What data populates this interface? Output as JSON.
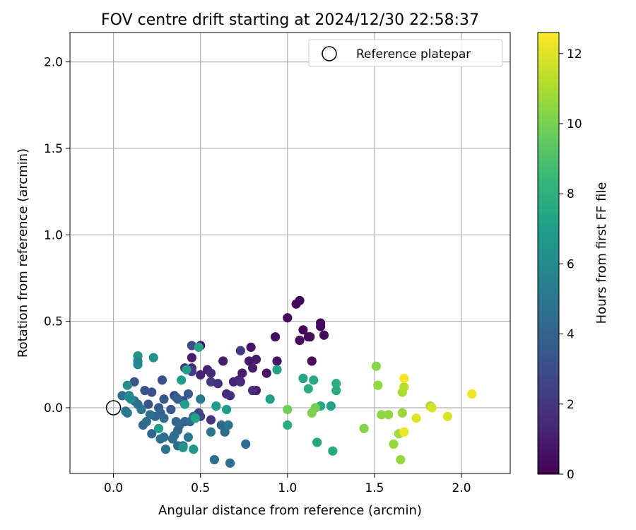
{
  "chart_data": {
    "type": "scatter",
    "title": "FOV centre drift starting at 2024/12/30 22:58:37",
    "xlabel": "Angular distance from reference (arcmin)",
    "ylabel": "Rotation from reference (arcmin)",
    "xlim": [
      -0.25,
      2.28
    ],
    "ylim": [
      -0.38,
      2.17
    ],
    "xticks": [
      0.0,
      0.5,
      1.0,
      1.5,
      2.0
    ],
    "yticks": [
      0.0,
      0.5,
      1.0,
      1.5,
      2.0
    ],
    "xtick_labels": [
      "0.0",
      "0.5",
      "1.0",
      "1.5",
      "2.0"
    ],
    "ytick_labels": [
      "0.0",
      "0.5",
      "1.0",
      "1.5",
      "2.0"
    ],
    "grid": true,
    "legend": {
      "placement": "top-right",
      "entries": [
        "Reference platepar"
      ]
    },
    "reference_point": {
      "x": 0.0,
      "y": 0.0
    },
    "colorbar": {
      "label": "Hours from first FF file",
      "colormap": "viridis",
      "range": [
        0,
        12.6
      ],
      "ticks": [
        0,
        2,
        4,
        6,
        8,
        10,
        12
      ],
      "tick_labels": [
        "0",
        "2",
        "4",
        "6",
        "8",
        "10",
        "12"
      ]
    },
    "colormap_stops": [
      "#440154",
      "#482878",
      "#3e4989",
      "#31688e",
      "#26828e",
      "#1f9e89",
      "#35b779",
      "#6ece58",
      "#b5de2b",
      "#fde725"
    ],
    "points": [
      {
        "x": 1.07,
        "y": 0.62,
        "t": 0.1
      },
      {
        "x": 1.05,
        "y": 0.6,
        "t": 0.2
      },
      {
        "x": 1.0,
        "y": 0.52,
        "t": 0.3
      },
      {
        "x": 1.19,
        "y": 0.49,
        "t": 0.2
      },
      {
        "x": 1.19,
        "y": 0.47,
        "t": 0.3
      },
      {
        "x": 1.09,
        "y": 0.45,
        "t": 0.2
      },
      {
        "x": 1.21,
        "y": 0.42,
        "t": 0.4
      },
      {
        "x": 1.12,
        "y": 0.41,
        "t": 0.3
      },
      {
        "x": 1.13,
        "y": 0.41,
        "t": 0.4
      },
      {
        "x": 1.07,
        "y": 0.39,
        "t": 0.3
      },
      {
        "x": 0.93,
        "y": 0.41,
        "t": 0.5
      },
      {
        "x": 1.14,
        "y": 0.27,
        "t": 0.4
      },
      {
        "x": 0.94,
        "y": 0.27,
        "t": 0.6
      },
      {
        "x": 0.79,
        "y": 0.35,
        "t": 0.7
      },
      {
        "x": 0.78,
        "y": 0.27,
        "t": 0.8
      },
      {
        "x": 0.82,
        "y": 0.28,
        "t": 0.9
      },
      {
        "x": 0.8,
        "y": 0.23,
        "t": 1.0
      },
      {
        "x": 0.88,
        "y": 0.2,
        "t": 0.8
      },
      {
        "x": 0.74,
        "y": 0.2,
        "t": 1.0
      },
      {
        "x": 0.63,
        "y": 0.27,
        "t": 1.0
      },
      {
        "x": 0.69,
        "y": 0.15,
        "t": 1.2
      },
      {
        "x": 0.72,
        "y": 0.16,
        "t": 1.3
      },
      {
        "x": 0.73,
        "y": 0.15,
        "t": 1.5
      },
      {
        "x": 0.82,
        "y": 0.1,
        "t": 1.0
      },
      {
        "x": 0.8,
        "y": 0.1,
        "t": 1.6
      },
      {
        "x": 0.65,
        "y": 0.08,
        "t": 1.5
      },
      {
        "x": 0.67,
        "y": 0.07,
        "t": 1.7
      },
      {
        "x": 0.73,
        "y": 0.33,
        "t": 2.2
      },
      {
        "x": 0.5,
        "y": 0.36,
        "t": 0.8
      },
      {
        "x": 0.45,
        "y": 0.29,
        "t": 1.0
      },
      {
        "x": 0.54,
        "y": 0.22,
        "t": 1.2
      },
      {
        "x": 0.56,
        "y": 0.2,
        "t": 1.5
      },
      {
        "x": 0.5,
        "y": 0.19,
        "t": 1.3
      },
      {
        "x": 0.45,
        "y": 0.23,
        "t": 1.6
      },
      {
        "x": 0.41,
        "y": 0.23,
        "t": 2.0
      },
      {
        "x": 0.45,
        "y": 0.21,
        "t": 2.3
      },
      {
        "x": 0.56,
        "y": 0.15,
        "t": 2.1
      },
      {
        "x": 0.6,
        "y": 0.14,
        "t": 1.8
      },
      {
        "x": 0.56,
        "y": -0.07,
        "t": 1.9
      },
      {
        "x": 0.5,
        "y": -0.05,
        "t": 2.7
      },
      {
        "x": 0.49,
        "y": -0.03,
        "t": 2.5
      },
      {
        "x": 0.35,
        "y": 0.07,
        "t": 2.6
      },
      {
        "x": 0.4,
        "y": 0.04,
        "t": 3.0
      },
      {
        "x": 0.28,
        "y": 0.16,
        "t": 3.1
      },
      {
        "x": 0.22,
        "y": 0.09,
        "t": 3.2
      },
      {
        "x": 0.18,
        "y": 0.1,
        "t": 3.3
      },
      {
        "x": 0.12,
        "y": 0.15,
        "t": 3.4
      },
      {
        "x": 0.43,
        "y": 0.08,
        "t": 3.5
      },
      {
        "x": 0.36,
        "y": 0.06,
        "t": 3.7
      },
      {
        "x": 0.37,
        "y": 0.05,
        "t": 3.9
      },
      {
        "x": 0.29,
        "y": 0.05,
        "t": 3.4
      },
      {
        "x": 0.33,
        "y": -0.01,
        "t": 3.6
      },
      {
        "x": 0.2,
        "y": 0.02,
        "t": 3.3
      },
      {
        "x": 0.26,
        "y": 0.0,
        "t": 3.6
      },
      {
        "x": 0.27,
        "y": -0.03,
        "t": 4.0
      },
      {
        "x": 0.24,
        "y": -0.05,
        "t": 4.2
      },
      {
        "x": 0.29,
        "y": -0.06,
        "t": 4.3
      },
      {
        "x": 0.36,
        "y": -0.08,
        "t": 4.0
      },
      {
        "x": 0.41,
        "y": -0.08,
        "t": 4.1
      },
      {
        "x": 0.44,
        "y": -0.08,
        "t": 4.4
      },
      {
        "x": 0.46,
        "y": -0.05,
        "t": 4.6
      },
      {
        "x": 0.38,
        "y": -0.1,
        "t": 4.2
      },
      {
        "x": 0.37,
        "y": -0.13,
        "t": 4.0
      },
      {
        "x": 0.35,
        "y": -0.16,
        "t": 4.3
      },
      {
        "x": 0.34,
        "y": -0.18,
        "t": 4.5
      },
      {
        "x": 0.29,
        "y": -0.17,
        "t": 4.3
      },
      {
        "x": 0.27,
        "y": -0.18,
        "t": 4.6
      },
      {
        "x": 0.22,
        "y": -0.15,
        "t": 4.1
      },
      {
        "x": 0.17,
        "y": -0.1,
        "t": 4.2
      },
      {
        "x": 0.19,
        "y": -0.08,
        "t": 4.4
      },
      {
        "x": 0.21,
        "y": -0.04,
        "t": 4.6
      },
      {
        "x": 0.16,
        "y": -0.01,
        "t": 4.9
      },
      {
        "x": 0.14,
        "y": 0.02,
        "t": 4.7
      },
      {
        "x": 0.12,
        "y": 0.04,
        "t": 4.5
      },
      {
        "x": 0.09,
        "y": 0.07,
        "t": 5.0
      },
      {
        "x": 0.05,
        "y": 0.07,
        "t": 4.5
      },
      {
        "x": 0.07,
        "y": -0.02,
        "t": 4.7
      },
      {
        "x": 0.08,
        "y": -0.03,
        "t": 5.0
      },
      {
        "x": 0.3,
        "y": -0.24,
        "t": 4.8
      },
      {
        "x": 0.37,
        "y": -0.22,
        "t": 4.4
      },
      {
        "x": 0.4,
        "y": -0.22,
        "t": 4.6
      },
      {
        "x": 0.43,
        "y": -0.17,
        "t": 5.0
      },
      {
        "x": 0.58,
        "y": -0.3,
        "t": 4.5
      },
      {
        "x": 0.67,
        "y": -0.32,
        "t": 4.6
      },
      {
        "x": 0.76,
        "y": -0.21,
        "t": 4.3
      },
      {
        "x": 0.62,
        "y": -0.1,
        "t": 4.2
      },
      {
        "x": 0.64,
        "y": -0.14,
        "t": 4.4
      },
      {
        "x": 0.66,
        "y": -0.1,
        "t": 4.9
      },
      {
        "x": 0.56,
        "y": -0.14,
        "t": 5.0
      },
      {
        "x": 0.5,
        "y": 0.05,
        "t": 5.0
      },
      {
        "x": 0.45,
        "y": 0.36,
        "t": 3.0
      },
      {
        "x": 0.14,
        "y": 0.25,
        "t": 6.0
      },
      {
        "x": 0.14,
        "y": 0.3,
        "t": 6.4
      },
      {
        "x": 0.23,
        "y": 0.29,
        "t": 6.3
      },
      {
        "x": 0.14,
        "y": 0.27,
        "t": 5.8
      },
      {
        "x": 0.08,
        "y": 0.13,
        "t": 6.2
      },
      {
        "x": 0.09,
        "y": 0.06,
        "t": 6.5
      },
      {
        "x": 0.1,
        "y": 0.05,
        "t": 6.0
      },
      {
        "x": 0.42,
        "y": 0.22,
        "t": 7.0
      },
      {
        "x": 0.39,
        "y": 0.16,
        "t": 6.8
      },
      {
        "x": 0.41,
        "y": 0.02,
        "t": 6.9
      },
      {
        "x": 0.26,
        "y": -0.12,
        "t": 7.0
      },
      {
        "x": 0.4,
        "y": -0.23,
        "t": 6.5
      },
      {
        "x": 0.46,
        "y": -0.24,
        "t": 6.7
      },
      {
        "x": 0.47,
        "y": -0.06,
        "t": 7.2
      },
      {
        "x": 0.49,
        "y": 0.35,
        "t": 7.3
      },
      {
        "x": 0.59,
        "y": 0.01,
        "t": 6.8
      },
      {
        "x": 0.65,
        "y": -0.01,
        "t": 7.0
      },
      {
        "x": 0.94,
        "y": 0.22,
        "t": 7.3
      },
      {
        "x": 0.9,
        "y": 0.05,
        "t": 7.1
      },
      {
        "x": 1.09,
        "y": 0.17,
        "t": 7.4
      },
      {
        "x": 1.15,
        "y": 0.16,
        "t": 7.6
      },
      {
        "x": 1.12,
        "y": 0.11,
        "t": 7.8
      },
      {
        "x": 1.19,
        "y": 0.01,
        "t": 7.5
      },
      {
        "x": 1.25,
        "y": 0.01,
        "t": 7.2
      },
      {
        "x": 1.28,
        "y": 0.14,
        "t": 7.9
      },
      {
        "x": 1.28,
        "y": 0.1,
        "t": 7.7
      },
      {
        "x": 1.17,
        "y": -0.2,
        "t": 7.4
      },
      {
        "x": 1.26,
        "y": -0.25,
        "t": 7.6
      },
      {
        "x": 1.0,
        "y": -0.1,
        "t": 7.8
      },
      {
        "x": 1.0,
        "y": -0.01,
        "t": 9.8
      },
      {
        "x": 1.16,
        "y": 0.0,
        "t": 9.9
      },
      {
        "x": 1.14,
        "y": -0.03,
        "t": 10.1
      },
      {
        "x": 1.44,
        "y": -0.12,
        "t": 10.2
      },
      {
        "x": 1.51,
        "y": 0.24,
        "t": 10.3
      },
      {
        "x": 1.52,
        "y": 0.13,
        "t": 10.5
      },
      {
        "x": 1.54,
        "y": -0.04,
        "t": 10.4
      },
      {
        "x": 1.58,
        "y": -0.04,
        "t": 10.5
      },
      {
        "x": 1.61,
        "y": -0.21,
        "t": 10.6
      },
      {
        "x": 1.64,
        "y": -0.15,
        "t": 10.8
      },
      {
        "x": 1.65,
        "y": -0.3,
        "t": 10.6
      },
      {
        "x": 1.66,
        "y": -0.03,
        "t": 10.7
      },
      {
        "x": 1.66,
        "y": 0.09,
        "t": 11.0
      },
      {
        "x": 1.67,
        "y": 0.12,
        "t": 11.2
      },
      {
        "x": 1.82,
        "y": 0.01,
        "t": 10.9
      },
      {
        "x": 1.67,
        "y": 0.17,
        "t": 12.4
      },
      {
        "x": 1.67,
        "y": -0.14,
        "t": 12.3
      },
      {
        "x": 1.74,
        "y": -0.06,
        "t": 12.0
      },
      {
        "x": 1.83,
        "y": 0.0,
        "t": 11.8
      },
      {
        "x": 1.92,
        "y": -0.05,
        "t": 11.9
      },
      {
        "x": 2.06,
        "y": 0.08,
        "t": 12.3
      }
    ]
  }
}
